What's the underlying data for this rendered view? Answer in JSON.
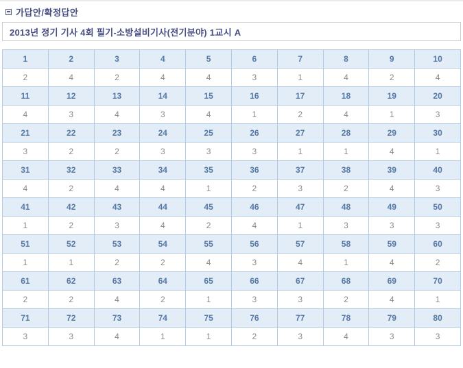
{
  "header": {
    "icon": "list-bullet-icon",
    "section_title": "가답안/확정답안"
  },
  "title_bar": {
    "text": "2013년 정기 기사 4회 필기-소방설비기사(전기분야) 1교시 A"
  },
  "answer_table": {
    "groups": [
      {
        "numbers": [
          1,
          2,
          3,
          4,
          5,
          6,
          7,
          8,
          9,
          10
        ],
        "answers": [
          2,
          4,
          2,
          4,
          4,
          3,
          1,
          4,
          2,
          4
        ]
      },
      {
        "numbers": [
          11,
          12,
          13,
          14,
          15,
          16,
          17,
          18,
          19,
          20
        ],
        "answers": [
          4,
          3,
          4,
          3,
          4,
          1,
          2,
          4,
          1,
          3
        ]
      },
      {
        "numbers": [
          21,
          22,
          23,
          24,
          25,
          26,
          27,
          28,
          29,
          30
        ],
        "answers": [
          3,
          2,
          2,
          3,
          3,
          3,
          1,
          1,
          4,
          1
        ]
      },
      {
        "numbers": [
          31,
          32,
          33,
          34,
          35,
          36,
          37,
          38,
          39,
          40
        ],
        "answers": [
          4,
          2,
          4,
          4,
          1,
          2,
          3,
          2,
          4,
          3
        ]
      },
      {
        "numbers": [
          41,
          42,
          43,
          44,
          45,
          46,
          47,
          48,
          49,
          50
        ],
        "answers": [
          1,
          2,
          3,
          4,
          2,
          4,
          1,
          3,
          3,
          3
        ]
      },
      {
        "numbers": [
          51,
          52,
          53,
          54,
          55,
          56,
          57,
          58,
          59,
          60
        ],
        "answers": [
          1,
          1,
          2,
          2,
          4,
          3,
          4,
          1,
          4,
          2
        ]
      },
      {
        "numbers": [
          61,
          62,
          63,
          64,
          65,
          66,
          67,
          68,
          69,
          70
        ],
        "answers": [
          2,
          2,
          4,
          2,
          1,
          3,
          3,
          2,
          4,
          1
        ]
      },
      {
        "numbers": [
          71,
          72,
          73,
          74,
          75,
          76,
          77,
          78,
          79,
          80
        ],
        "answers": [
          3,
          3,
          4,
          1,
          1,
          2,
          3,
          4,
          3,
          3
        ]
      }
    ]
  },
  "colors": {
    "page_bg": "#ffffff",
    "heading_navy": "#474f82",
    "question_number_blue": "#5478a5",
    "answer_gray": "#8a8a8a",
    "table_border": "#b3cbe2",
    "question_row_bg": "#e3edf8",
    "title_box_border": "#cccccc"
  }
}
